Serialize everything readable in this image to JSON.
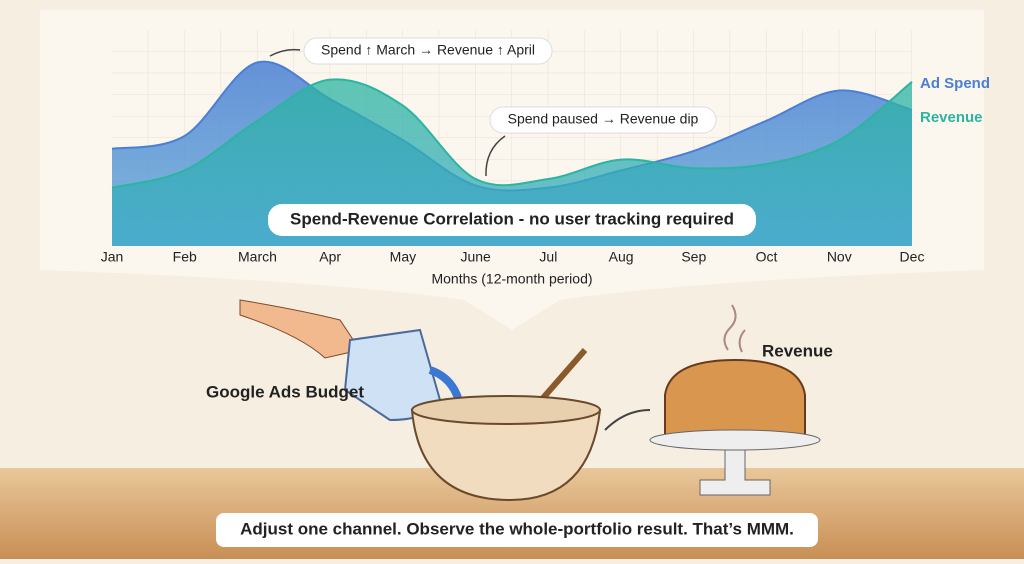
{
  "chart_data": {
    "type": "area",
    "categories": [
      "Jan",
      "Feb",
      "March",
      "Apr",
      "May",
      "June",
      "Jul",
      "Aug",
      "Sep",
      "Oct",
      "Nov",
      "Dec"
    ],
    "series": [
      {
        "name": "Ad Spend",
        "color": "#4a7fd4",
        "values": [
          45,
          51,
          85,
          68,
          49,
          28,
          27,
          35,
          44,
          58,
          72,
          63
        ]
      },
      {
        "name": "Revenue",
        "color": "#2bb5a0",
        "values": [
          27,
          35,
          58,
          77,
          65,
          31,
          31,
          40,
          36,
          38,
          49,
          76
        ]
      }
    ],
    "ylim": [
      0,
      100
    ],
    "grid": true,
    "x_label": "Months (12-month period)",
    "annotations": [
      "Spend ↑ March → Revenue ↑ April",
      "Spend paused → Revenue dip"
    ],
    "banner": "Spend-Revenue Correlation - no user tracking required"
  },
  "illustration": {
    "input_label": "Google Ads Budget",
    "output_label": "Revenue",
    "caption": "Adjust one channel. Observe the whole-portfolio result. That’s MMM."
  }
}
